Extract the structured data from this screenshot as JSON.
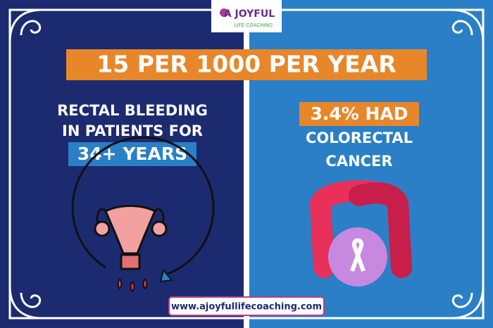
{
  "logo": {
    "name": "A JOYFUL",
    "tagline": "LIFE COACHING"
  },
  "headline": "15 PER 1000 PER YEAR",
  "left": {
    "lines": [
      "RECTAL BLEEDING",
      "IN PATIENTS FOR"
    ],
    "highlight": "34+ YEARS"
  },
  "right": {
    "highlight": "3.4% HAD",
    "lines": [
      "COLORECTAL",
      "CANCER"
    ]
  },
  "footer": "www.ajoyfullifecoaching.com"
}
